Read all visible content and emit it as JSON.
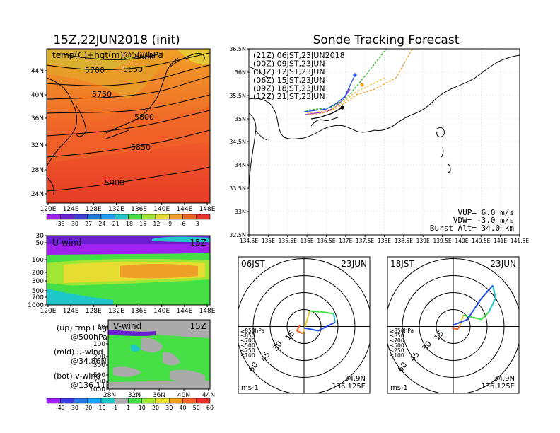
{
  "init_panel": {
    "title": "15Z,22JUN2018 (init)",
    "label": "temp(C)+hgt(m)@500hPa",
    "contour_labels": [
      "5660",
      "5700",
      "5650",
      "5750",
      "5800",
      "5850",
      "5900"
    ],
    "lat_ticks": [
      "44N",
      "40N",
      "36N",
      "32N",
      "28N",
      "24N"
    ],
    "lon_ticks": [
      "120E",
      "124E",
      "128E",
      "132E",
      "136E",
      "140E",
      "144E",
      "148E"
    ],
    "colorbar_ticks": [
      "-33",
      "-30",
      "-27",
      "-24",
      "-21",
      "-18",
      "-15",
      "-12",
      "-9",
      "-6",
      "-3"
    ],
    "colorbar_colors": [
      "#a020f0",
      "#6a1fd0",
      "#3e3ed8",
      "#1e78e0",
      "#1ea0ff",
      "#1ec8c8",
      "#46e046",
      "#a0e632",
      "#e6dc32",
      "#f0a028",
      "#f06428",
      "#e63228"
    ]
  },
  "uwind_panel": {
    "label": "U-wind",
    "time": "15Z",
    "p_ticks": [
      "30",
      "50",
      "100",
      "200",
      "300",
      "500",
      "700",
      "1000"
    ],
    "lon_ticks": [
      "120E",
      "124E",
      "128E",
      "132E",
      "136E",
      "140E",
      "144E",
      "148E"
    ]
  },
  "vwind_panel": {
    "label": "V-wind",
    "time": "15Z",
    "p_ticks": [
      "50",
      "100",
      "200",
      "300",
      "500",
      "700",
      "1000"
    ],
    "lat_ticks": [
      "28N",
      "32N",
      "36N",
      "40N",
      "44N"
    ]
  },
  "legend_text": [
    {
      "line1": "(up) tmp+hgt",
      "line2": "@500hPa"
    },
    {
      "line1": "(mid) u-wind",
      "line2": "@34.86N"
    },
    {
      "line1": "(bot) v-wind",
      "line2": "@136.11E"
    }
  ],
  "wind_colorbar": {
    "ticks": [
      "-40",
      "-30",
      "-20",
      "-10",
      "-1",
      "1",
      "10",
      "20",
      "30",
      "40",
      "50",
      "60"
    ],
    "colors": [
      "#a020f0",
      "#3e3ed8",
      "#1e78e0",
      "#1ea0ff",
      "#1ec8c8",
      "#aaaaaa",
      "#46e046",
      "#a0e632",
      "#e6dc32",
      "#f0a028",
      "#f06428",
      "#e63228"
    ]
  },
  "tracking": {
    "title": "Sonde Tracking Forecast",
    "lat_ticks": [
      "36.5N",
      "36N",
      "35.5N",
      "35N",
      "34.5N",
      "34N",
      "33.5N",
      "33N",
      "32.5N"
    ],
    "lon_ticks": [
      "134.5E",
      "135E",
      "135.5E",
      "136E",
      "136.5E",
      "137E",
      "137.5E",
      "138E",
      "138.5E",
      "139E",
      "139.5E",
      "140E",
      "140.5E",
      "141E",
      "141.5E"
    ],
    "launches": [
      {
        "label": "(21Z)  06JST,23JUN2018",
        "color": "#000000"
      },
      {
        "label": "(00Z)  09JST,23JUN",
        "color": "#a020f0"
      },
      {
        "label": "(03Z)  12JST,23JUN",
        "color": "#1e50e6"
      },
      {
        "label": "(06Z)  15JST,23JUN",
        "color": "#1eb41e"
      },
      {
        "label": "(09Z)  18JST,23JUN",
        "color": "#e6c832"
      },
      {
        "label": "(12Z)  21JST,23JUN",
        "color": "#f0a028"
      }
    ],
    "vup": "VUP=  6.0  m/s",
    "vdw": "VDW= -3.0  m/s",
    "burst": "Burst Alt=  34.0  km"
  },
  "hodographs": [
    {
      "time": "06JST",
      "date": "23JUN",
      "lat": "34.9N",
      "lon": "136.125E",
      "unit": "ms-1"
    },
    {
      "time": "18JST",
      "date": "23JUN",
      "lat": "34.9N",
      "lon": "136.125E",
      "unit": "ms-1"
    }
  ],
  "hodo_rings": [
    "15",
    "30",
    "45",
    "60"
  ],
  "hodo_levels": [
    {
      "label": "≥850hPa",
      "color": "#f06428"
    },
    {
      "label": "≤850",
      "color": "#f0a028"
    },
    {
      "label": "≤700",
      "color": "#e6c832"
    },
    {
      "label": "≤500",
      "color": "#46e046"
    },
    {
      "label": "≤250",
      "color": "#1ec8c8"
    },
    {
      "label": "≤100",
      "color": "#1e50e6"
    }
  ]
}
